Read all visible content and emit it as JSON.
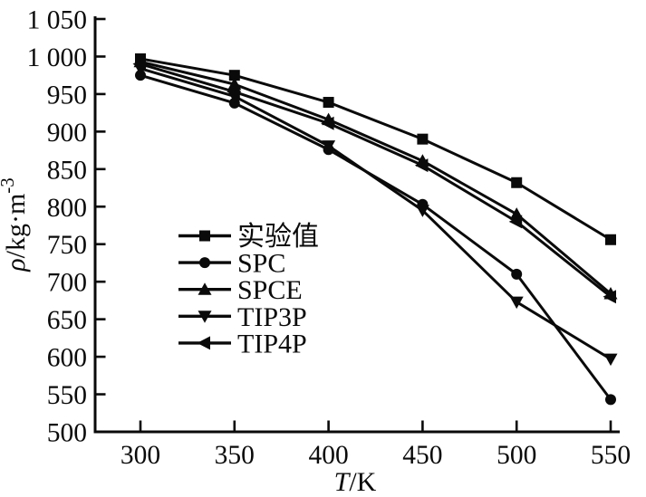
{
  "figure": {
    "background": "#ffffff",
    "ink_color": "#0a0a0a"
  },
  "chart_data": {
    "type": "line",
    "title": "",
    "xlabel_variable": "T",
    "xlabel_unit": "/K",
    "ylabel_variable": "ρ",
    "ylabel_unit": "/kg·m",
    "ylabel_exponent": "-3",
    "xlim": [
      275,
      560
    ],
    "ylim": [
      500,
      1050
    ],
    "xticks": [
      300,
      350,
      400,
      450,
      500,
      550
    ],
    "yticks": [
      500,
      550,
      600,
      650,
      700,
      750,
      800,
      850,
      900,
      950,
      1000,
      1050
    ],
    "ytick_labels": [
      "500",
      "550",
      "600",
      "650",
      "700",
      "750",
      "800",
      "850",
      "900",
      "950",
      "1 000",
      "1 050"
    ],
    "grid": false,
    "legend_position": "inside-center-left",
    "x": [
      300,
      350,
      400,
      450,
      500,
      550
    ],
    "series": [
      {
        "key": "experimental",
        "name": "实验值",
        "marker": "square",
        "values": [
          997,
          975,
          939,
          890,
          832,
          756
        ]
      },
      {
        "key": "spc",
        "name": "SPC",
        "marker": "circle",
        "values": [
          975,
          938,
          876,
          803,
          710,
          543
        ]
      },
      {
        "key": "spce",
        "name": "SPCE",
        "marker": "triangle-up",
        "values": [
          993,
          963,
          916,
          861,
          790,
          684
        ]
      },
      {
        "key": "tip3p",
        "name": "TIP3P",
        "marker": "triangle-down",
        "values": [
          984,
          947,
          881,
          795,
          673,
          597
        ]
      },
      {
        "key": "tip4p",
        "name": "TIP4P",
        "marker": "triangle-left",
        "values": [
          990,
          953,
          911,
          855,
          780,
          680
        ]
      }
    ]
  }
}
